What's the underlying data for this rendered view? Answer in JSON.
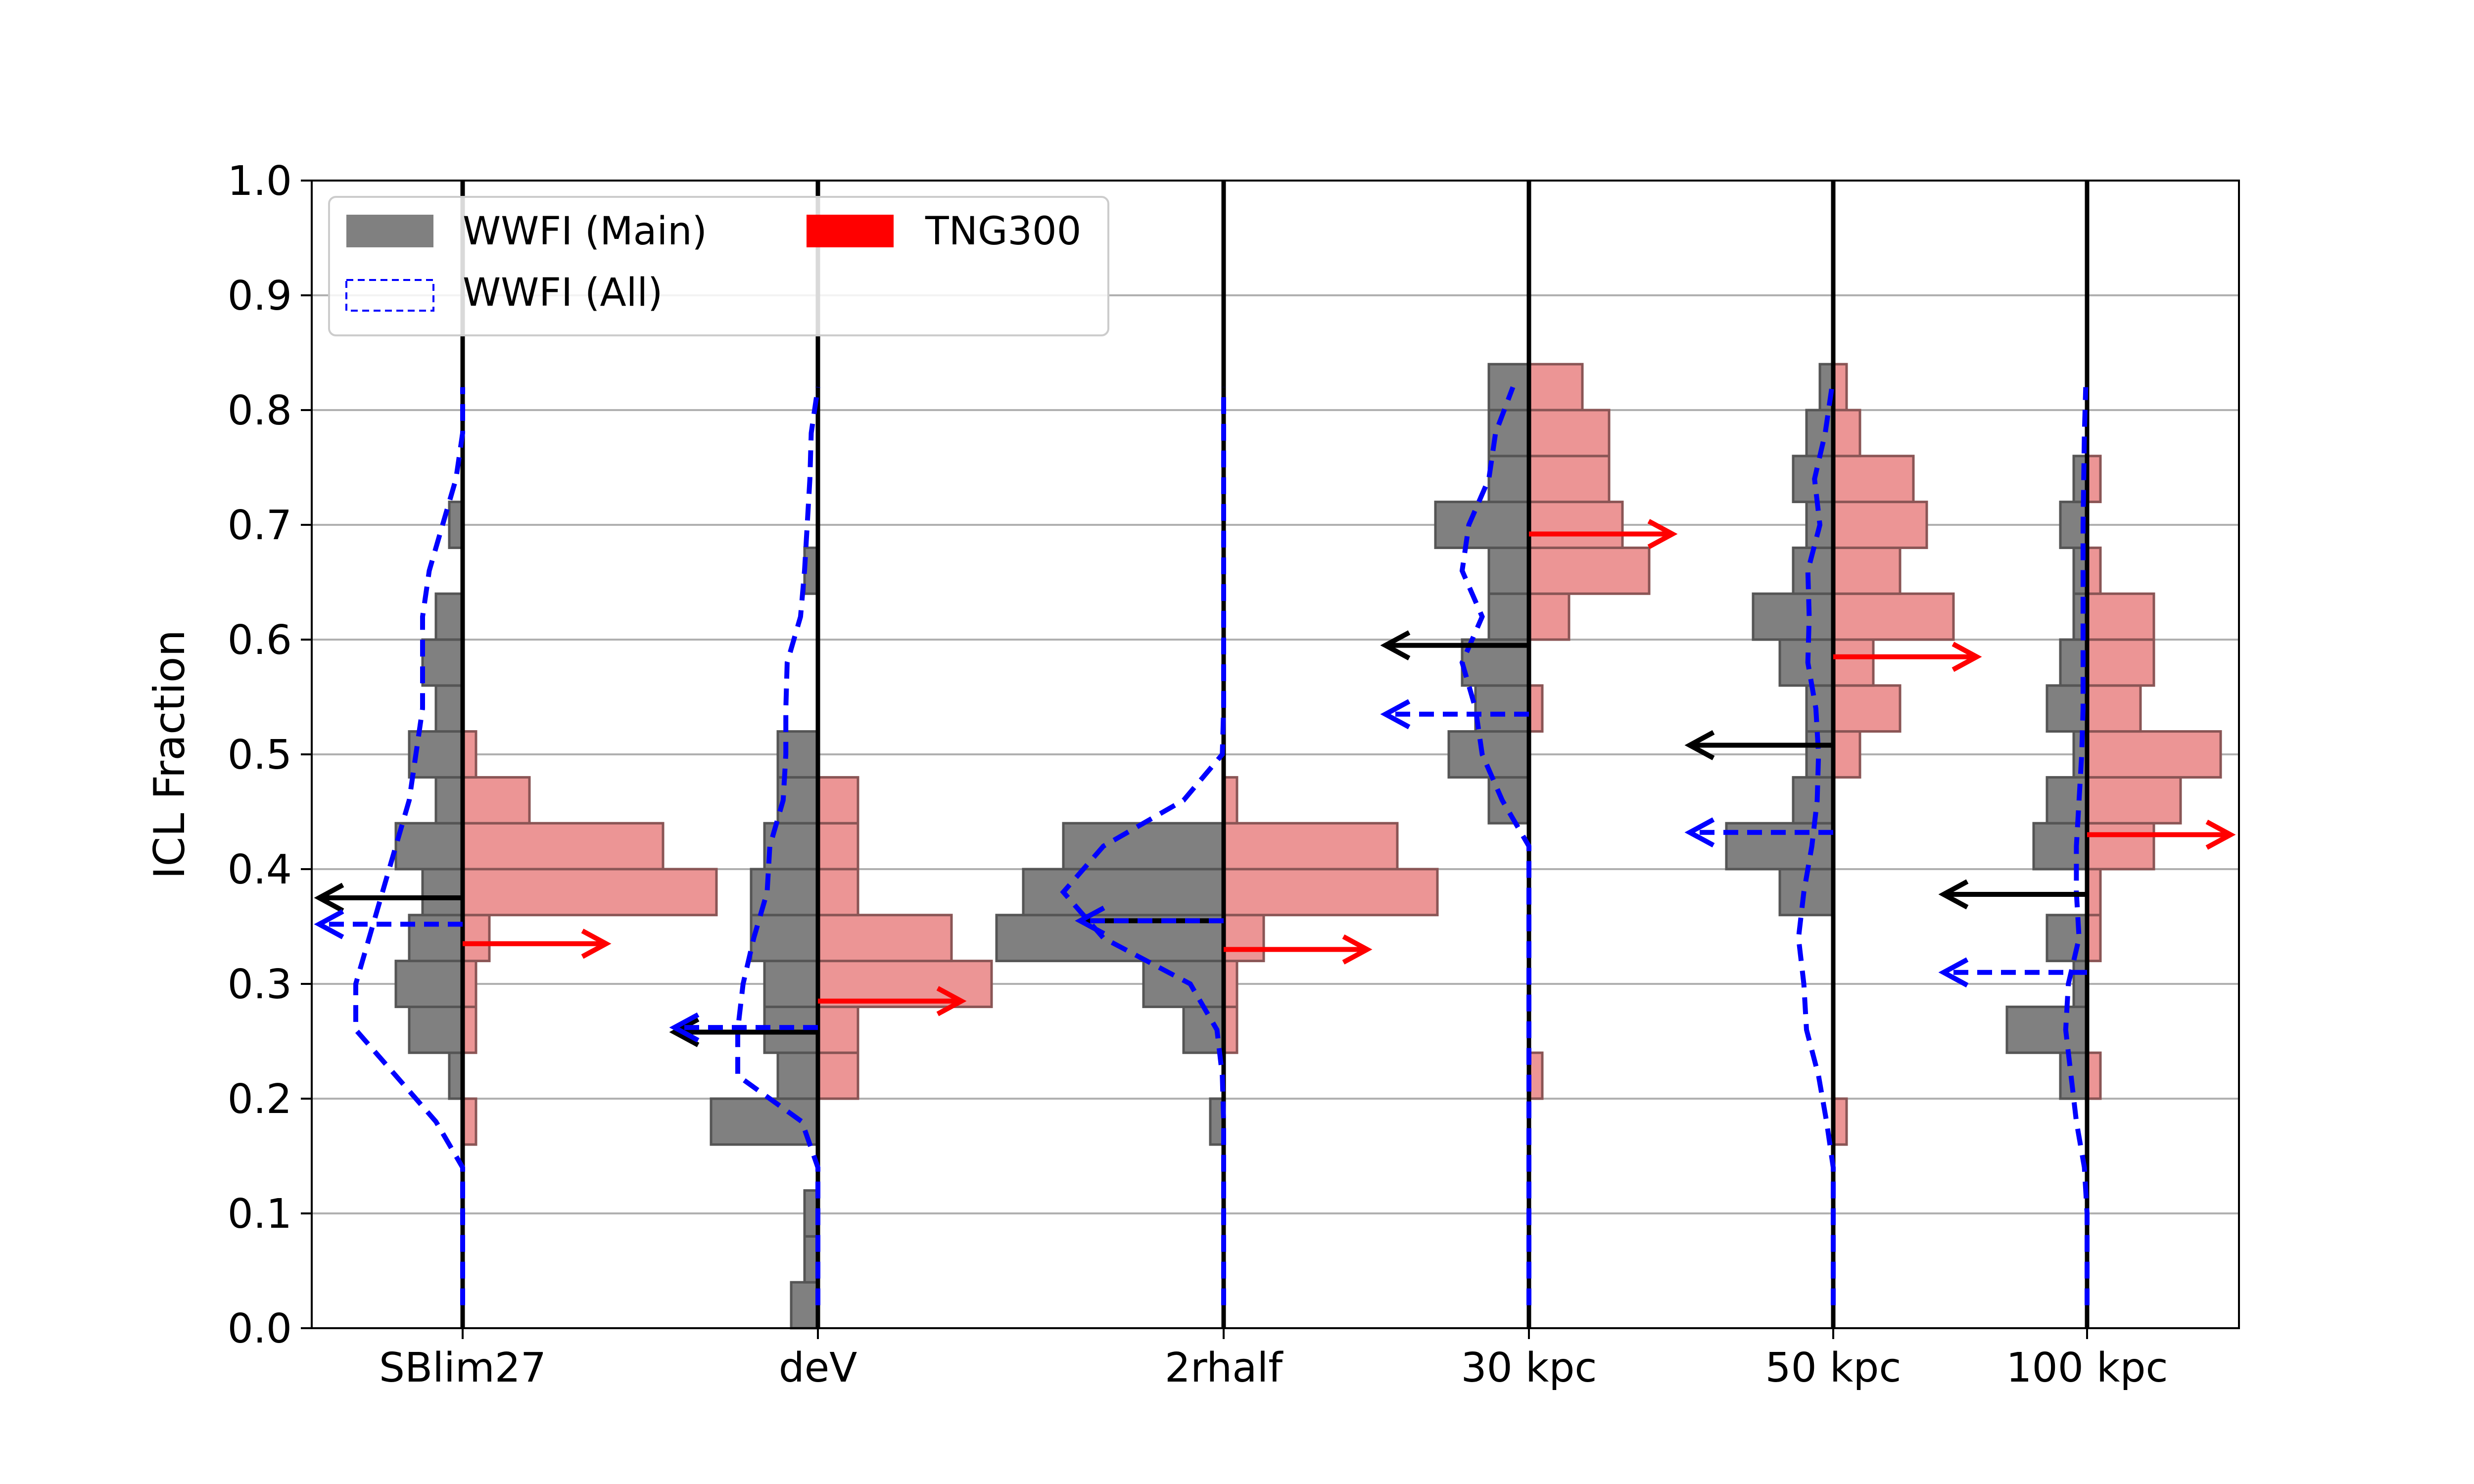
{
  "chart_data": {
    "type": "violin-histogram",
    "ylabel": "ICL Fraction",
    "ylim": [
      0.0,
      1.0
    ],
    "yticks": [
      "0.0",
      "0.1",
      "0.2",
      "0.3",
      "0.4",
      "0.5",
      "0.6",
      "0.7",
      "0.8",
      "0.9",
      "1.0"
    ],
    "grid": "horizontal",
    "bin_edges": [
      0.0,
      0.04,
      0.08,
      0.12,
      0.16,
      0.2,
      0.24,
      0.28,
      0.32,
      0.36,
      0.4,
      0.44,
      0.48,
      0.52,
      0.56,
      0.6,
      0.64,
      0.68,
      0.72,
      0.76,
      0.8,
      0.84
    ],
    "legend": {
      "placement": "top-left",
      "entries": [
        {
          "key": "main",
          "label": "WWFI (Main)",
          "color": "#808080"
        },
        {
          "key": "tng",
          "label": "TNG300",
          "color": "#ff0000"
        },
        {
          "key": "all",
          "label": "WWFI (All)",
          "color": "#0000ff"
        }
      ]
    },
    "colors": {
      "main_fill": "#808080",
      "main_edge": "#555555",
      "tng_fill": "#ec9595",
      "tng_edge": "#8a5555",
      "all_line": "#0000ff",
      "main_arrow": "#000000",
      "tng_arrow": "#ff0000"
    },
    "groups": [
      {
        "label": "SBlim27",
        "main": [
          0,
          0,
          0,
          0,
          0,
          1,
          4,
          5,
          4,
          3,
          5,
          2,
          4,
          2,
          3,
          2,
          0,
          1,
          0,
          0,
          0,
          0
        ],
        "tng": [
          0,
          0,
          0,
          0,
          1,
          0,
          1,
          1,
          2,
          19,
          15,
          5,
          1,
          0,
          0,
          0,
          0,
          0,
          0,
          0,
          0,
          0
        ],
        "all": [
          0,
          0,
          0,
          0,
          2,
          5,
          8,
          8,
          7,
          6,
          5,
          4,
          3.5,
          3,
          3,
          3,
          2.5,
          1.5,
          0.5,
          0,
          0,
          0
        ],
        "main_median": 0.375,
        "tng_median": 0.335,
        "all_median": 0.352
      },
      {
        "label": "deV",
        "main": [
          2,
          1,
          1,
          0,
          8,
          3,
          4,
          4,
          5,
          5,
          4,
          3,
          3,
          0,
          0,
          0,
          1,
          0,
          0,
          0,
          0,
          0
        ],
        "tng": [
          0,
          0,
          0,
          0,
          0,
          3,
          3,
          13,
          10,
          3,
          3,
          3,
          0,
          0,
          0,
          0,
          0,
          0,
          0,
          0,
          0,
          0
        ],
        "all": [
          0,
          0,
          0,
          0,
          1.2,
          6,
          6,
          5.6,
          4.8,
          3.8,
          3.6,
          2.6,
          2.4,
          2.4,
          2.3,
          1.3,
          1,
          0.8,
          0.6,
          0.5,
          0,
          0
        ],
        "main_median": 0.258,
        "tng_median": 0.285,
        "all_median": 0.262
      },
      {
        "label": "2rhalf",
        "main": [
          0,
          0,
          0,
          0,
          1,
          0,
          3,
          6,
          17,
          15,
          12,
          0,
          0,
          0,
          0,
          0,
          0,
          0,
          0,
          0,
          0,
          0
        ],
        "tng": [
          0,
          0,
          0,
          0,
          0,
          0,
          1,
          1,
          3,
          16,
          13,
          1,
          0,
          0,
          0,
          0,
          0,
          0,
          0,
          0,
          0,
          0
        ],
        "all": [
          0,
          0,
          0,
          0,
          0,
          0.1,
          0.5,
          2.5,
          9,
          12,
          9,
          3,
          0.1,
          0,
          0,
          0,
          0,
          0,
          0,
          0,
          0,
          0
        ],
        "main_median": 0.355,
        "tng_median": 0.33,
        "all_median": 0.355
      },
      {
        "label": "30 kpc",
        "main": [
          0,
          0,
          0,
          0,
          0,
          0,
          0,
          0,
          0,
          0,
          0,
          3,
          6,
          4,
          5,
          3,
          3,
          7,
          3,
          3,
          3,
          1
        ],
        "tng": [
          0,
          0,
          0,
          0,
          0,
          1,
          0,
          0,
          0,
          0,
          0,
          0,
          0,
          1,
          0,
          3,
          9,
          7,
          6,
          6,
          4,
          1
        ],
        "all": [
          0,
          0,
          0,
          0,
          0,
          0,
          0,
          0,
          0,
          0,
          0,
          2,
          3.5,
          4,
          5,
          3.5,
          5,
          4.5,
          3,
          2.5,
          1.2,
          1
        ],
        "main_median": 0.595,
        "tng_median": 0.692,
        "all_median": 0.535
      },
      {
        "label": "50 kpc",
        "main": [
          0,
          0,
          0,
          0,
          0,
          0,
          0,
          0,
          0,
          4,
          8,
          3,
          2,
          2,
          4,
          6,
          3,
          2,
          3,
          2,
          1,
          0
        ],
        "tng": [
          0,
          0,
          0,
          0,
          1,
          0,
          0,
          0,
          0,
          0,
          0,
          0,
          2,
          5,
          3,
          9,
          5,
          7,
          6,
          2,
          1,
          0
        ],
        "all": [
          0,
          0,
          0,
          0,
          0.5,
          1.1,
          2,
          2.2,
          2.6,
          2.2,
          1.6,
          1.2,
          1.1,
          1.3,
          1.9,
          1.8,
          1.9,
          1,
          1.4,
          0.6,
          0.1,
          0
        ],
        "main_median": 0.508,
        "tng_median": 0.585,
        "all_median": 0.432
      },
      {
        "label": "100 kpc",
        "main": [
          0,
          0,
          0,
          0,
          0,
          2,
          6,
          1,
          3,
          0,
          4,
          3,
          1,
          3,
          2,
          1,
          1,
          2,
          1,
          0,
          0,
          0
        ],
        "tng": [
          0,
          0,
          0,
          0,
          0,
          1,
          0,
          0,
          1,
          1,
          5,
          7,
          10,
          4,
          5,
          5,
          1,
          0,
          1,
          0,
          0,
          0
        ],
        "all": [
          0,
          0,
          0,
          0.2,
          0.8,
          1.2,
          1.6,
          1.4,
          0.6,
          0.8,
          0.8,
          0.6,
          0.4,
          0.3,
          0.3,
          0.3,
          0.3,
          0.3,
          0.25,
          0.2,
          0.1,
          0
        ],
        "main_median": 0.378,
        "tng_median": 0.43,
        "all_median": 0.31
      }
    ]
  }
}
